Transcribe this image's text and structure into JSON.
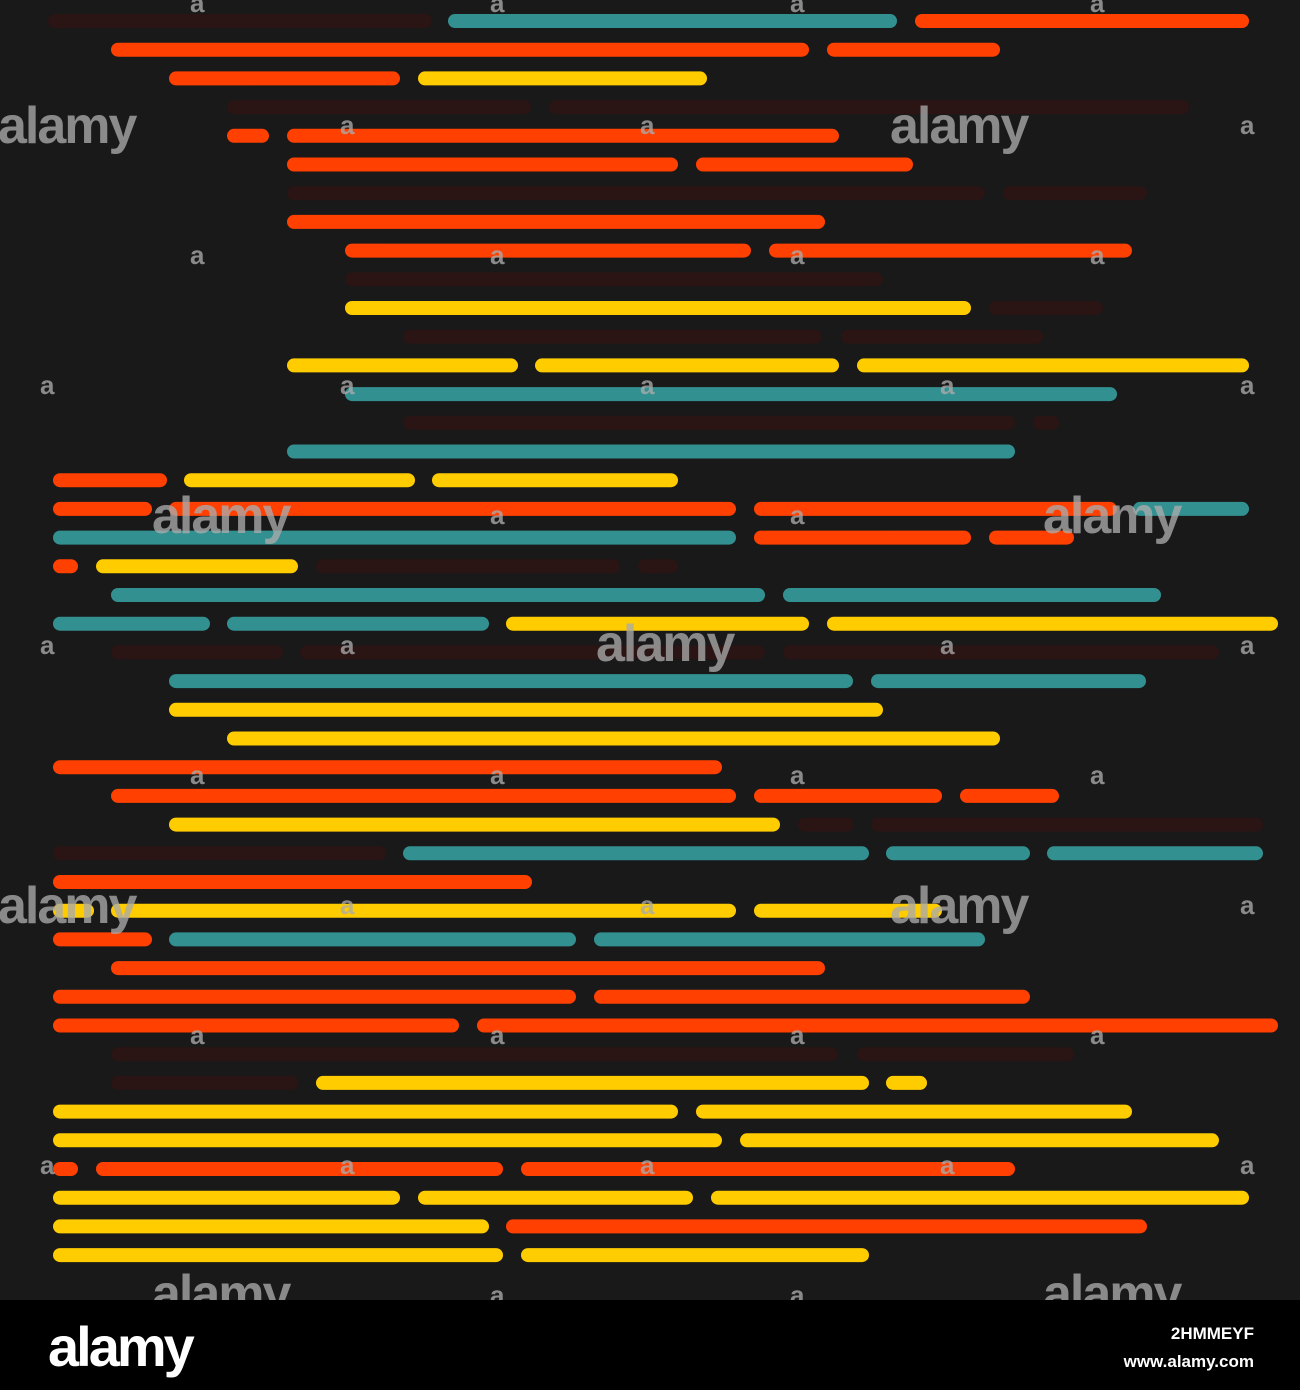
{
  "colors": {
    "background": "#191919",
    "orange": "#FF4000",
    "yellow": "#FFCC00",
    "teal": "#339090",
    "dark": "#2A1414",
    "footer": "#000000"
  },
  "watermark": {
    "big": "alamy",
    "small": "a"
  },
  "footer": {
    "logo": "alamy",
    "image_id": "2HMMEYF",
    "site": "www.alamy.com"
  },
  "rows": [
    [
      [
        "d",
        55,
        425
      ],
      [
        "t",
        455,
        890
      ],
      [
        "o",
        922,
        1242
      ]
    ],
    [
      [
        "o",
        118,
        802
      ],
      [
        "o",
        834,
        993
      ]
    ],
    [
      [
        "o",
        176,
        393
      ],
      [
        "y",
        425,
        700
      ]
    ],
    [
      [
        "d",
        234,
        524
      ],
      [
        "d",
        556,
        1182
      ]
    ],
    [
      [
        "o",
        234,
        262
      ],
      [
        "o",
        294,
        832
      ]
    ],
    [
      [
        "o",
        294,
        671
      ],
      [
        "o",
        703,
        906
      ]
    ],
    [
      [
        "d",
        294,
        978
      ],
      [
        "d",
        1010,
        1140
      ]
    ],
    [
      [
        "o",
        294,
        818
      ]
    ],
    [
      [
        "o",
        352,
        744
      ],
      [
        "o",
        776,
        1125
      ]
    ],
    [
      [
        "d",
        352,
        876
      ]
    ],
    [
      [
        "y",
        352,
        964
      ],
      [
        "d",
        996,
        1096
      ]
    ],
    [
      [
        "d",
        410,
        815
      ],
      [
        "d",
        848,
        1036
      ]
    ],
    [
      [
        "y",
        294,
        511
      ],
      [
        "y",
        542,
        832
      ],
      [
        "y",
        864,
        1242
      ]
    ],
    [
      [
        "t",
        352,
        1110
      ]
    ],
    [
      [
        "d",
        410,
        1008
      ],
      [
        "d",
        1040,
        1052
      ]
    ],
    [
      [
        "t",
        294,
        1008
      ]
    ],
    [
      [
        "o",
        60,
        160
      ],
      [
        "y",
        191,
        408
      ],
      [
        "y",
        439,
        671
      ]
    ],
    [
      [
        "o",
        60,
        145
      ],
      [
        "o",
        176,
        729
      ],
      [
        "o",
        761,
        1110
      ],
      [
        "t",
        1140,
        1242
      ]
    ],
    [
      [
        "t",
        60,
        729
      ],
      [
        "o",
        761,
        964
      ],
      [
        "o",
        996,
        1067
      ]
    ],
    [
      [
        "o",
        60,
        71
      ],
      [
        "y",
        103,
        291
      ],
      [
        "d",
        323,
        613
      ],
      [
        "d",
        645,
        671
      ]
    ],
    [
      [
        "t",
        118,
        758
      ],
      [
        "t",
        790,
        1154
      ]
    ],
    [
      [
        "t",
        60,
        203
      ],
      [
        "t",
        234,
        482
      ],
      [
        "y",
        513,
        802
      ],
      [
        "y",
        834,
        1271
      ]
    ],
    [
      [
        "d",
        118,
        276
      ],
      [
        "d",
        307,
        758
      ],
      [
        "d",
        790,
        1212
      ]
    ],
    [
      [
        "t",
        176,
        846
      ],
      [
        "t",
        878,
        1139
      ]
    ],
    [
      [
        "y",
        176,
        876
      ]
    ],
    [
      [
        "y",
        234,
        993
      ]
    ],
    [
      [
        "o",
        60,
        715
      ]
    ],
    [
      [
        "o",
        118,
        729
      ],
      [
        "o",
        761,
        935
      ],
      [
        "o",
        967,
        1052
      ]
    ],
    [
      [
        "y",
        176,
        773
      ],
      [
        "d",
        805,
        847
      ],
      [
        "d",
        878,
        1256
      ]
    ],
    [
      [
        "d",
        60,
        379
      ],
      [
        "t",
        410,
        862
      ],
      [
        "t",
        893,
        1023
      ],
      [
        "t",
        1054,
        1256
      ]
    ],
    [
      [
        "o",
        60,
        525
      ]
    ],
    [
      [
        "y",
        60,
        87
      ],
      [
        "y",
        118,
        729
      ],
      [
        "y",
        761,
        935
      ]
    ],
    [
      [
        "o",
        60,
        145
      ],
      [
        "t",
        176,
        569
      ],
      [
        "t",
        601,
        978
      ]
    ],
    [
      [
        "o",
        118,
        818
      ]
    ],
    [
      [
        "o",
        60,
        569
      ],
      [
        "o",
        601,
        1023
      ]
    ],
    [
      [
        "o",
        60,
        452
      ],
      [
        "o",
        484,
        1271
      ]
    ],
    [
      [
        "d",
        118,
        831
      ],
      [
        "d",
        864,
        1067
      ]
    ],
    [
      [
        "d",
        118,
        291
      ],
      [
        "y",
        323,
        862
      ],
      [
        "y",
        893,
        920
      ]
    ],
    [
      [
        "y",
        60,
        671
      ],
      [
        "y",
        703,
        1125
      ]
    ],
    [
      [
        "y",
        60,
        715
      ],
      [
        "y",
        747,
        1212
      ]
    ],
    [
      [
        "o",
        60,
        71
      ],
      [
        "o",
        103,
        496
      ],
      [
        "o",
        528,
        1008
      ]
    ],
    [
      [
        "y",
        60,
        393
      ],
      [
        "y",
        425,
        686
      ],
      [
        "y",
        718,
        1242
      ]
    ],
    [
      [
        "y",
        60,
        482
      ],
      [
        "o",
        513,
        1140
      ]
    ],
    [
      [
        "y",
        60,
        496
      ],
      [
        "y",
        528,
        862
      ]
    ]
  ]
}
